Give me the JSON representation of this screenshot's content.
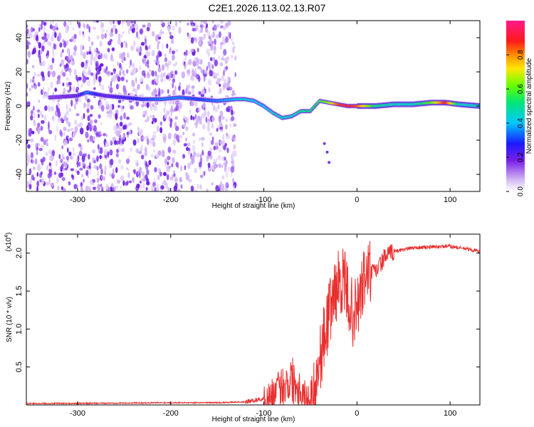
{
  "title": "C2E1.2026.113.02.13.R07",
  "chart_data": [
    {
      "type": "heatmap",
      "xlabel": "Height of straight line (km)",
      "ylabel": "Frequency (Hz)",
      "xlim": [
        -355,
        132
      ],
      "ylim": [
        -50,
        50
      ],
      "xticks": [
        -300,
        -200,
        -100,
        0,
        100
      ],
      "xtick_labels": [
        "-300",
        "-200",
        "-100",
        "0",
        "100"
      ],
      "yticks": [
        -40,
        -20,
        0,
        20,
        40
      ],
      "ytick_labels": [
        "-40",
        "-20",
        "0",
        "20",
        "40"
      ],
      "colorbar": {
        "label": "Normalized spectral amplitude",
        "range": [
          0,
          1
        ],
        "ticks": [
          0,
          0.2,
          0.4,
          0.6,
          0.8
        ],
        "tick_labels": [
          "0.0",
          "0.2",
          "0.4",
          "0.6",
          "0.8"
        ]
      },
      "noise_extent_x": [
        -355,
        -130
      ],
      "ridge": {
        "x": [
          -330,
          -300,
          -290,
          -270,
          -250,
          -230,
          -210,
          -190,
          -170,
          -150,
          -130,
          -120,
          -110,
          -100,
          -90,
          -80,
          -70,
          -60,
          -50,
          -40,
          -30,
          -20,
          -10,
          0,
          20,
          40,
          60,
          80,
          95,
          110,
          132
        ],
        "freq": [
          5,
          6,
          8,
          6,
          5,
          4,
          4,
          5,
          4,
          3,
          4,
          4,
          3,
          0,
          -4,
          -7,
          -6,
          -3,
          -3,
          3,
          2,
          1,
          0,
          0,
          0,
          1,
          1,
          2,
          2,
          1,
          0
        ],
        "amplitude": [
          0.15,
          0.2,
          0.35,
          0.2,
          0.25,
          0.3,
          0.35,
          0.35,
          0.3,
          0.35,
          0.4,
          0.45,
          0.4,
          0.4,
          0.45,
          0.45,
          0.45,
          0.5,
          0.5,
          0.55,
          0.65,
          0.85,
          0.9,
          0.85,
          0.5,
          0.45,
          0.45,
          0.6,
          0.9,
          0.45,
          0.45
        ]
      },
      "branch": {
        "x": [
          -35,
          -32,
          -30
        ],
        "freq": [
          -22,
          -27,
          -33
        ]
      }
    },
    {
      "type": "line",
      "xlabel": "Height of straight line (km)",
      "ylabel": "SNR (10 * v/v)",
      "y_multiplier_label": "(x10",
      "y_multiplier_exponent": "4",
      "y_multiplier_close": ")",
      "xlim": [
        -355,
        132
      ],
      "ylim": [
        0,
        2.25
      ],
      "xticks": [
        -300,
        -200,
        -100,
        0,
        100
      ],
      "xtick_labels": [
        "-300",
        "-200",
        "-100",
        "0",
        "100"
      ],
      "yticks": [
        0.5,
        1.0,
        1.5,
        2.0
      ],
      "ytick_labels": [
        "0.5",
        "1.0",
        "1.5",
        "2.0"
      ],
      "series_color": "#e8302f",
      "series": [
        {
          "x": [
            -355,
            -300,
            -200,
            -150,
            -120,
            -100,
            -90,
            -80,
            -70,
            -60,
            -50,
            -45,
            -40,
            -35,
            -30,
            -25,
            -20,
            -15,
            -10,
            -5,
            0,
            5,
            10,
            20,
            30,
            40,
            50,
            60,
            80,
            100,
            120,
            132
          ],
          "values": [
            0.02,
            0.02,
            0.03,
            0.03,
            0.04,
            0.08,
            0.15,
            0.25,
            0.35,
            0.2,
            0.05,
            0.25,
            0.6,
            0.9,
            1.2,
            1.45,
            1.6,
            1.65,
            1.45,
            1.2,
            1.25,
            1.5,
            1.75,
            1.75,
            1.95,
            2.02,
            2.05,
            2.07,
            2.08,
            2.09,
            2.05,
            2.02
          ]
        }
      ]
    }
  ]
}
